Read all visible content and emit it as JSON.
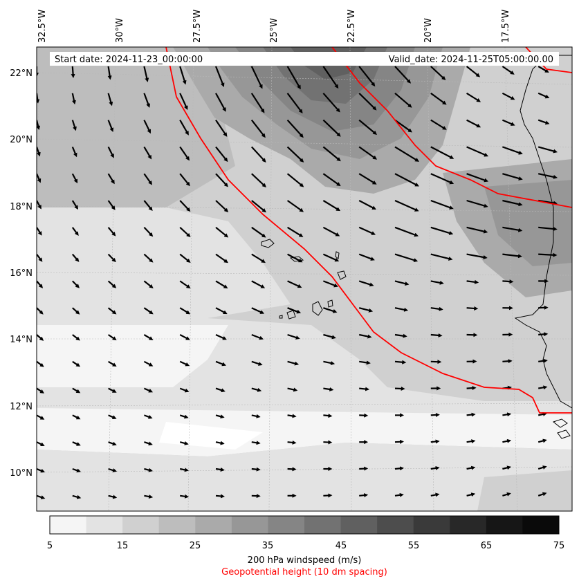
{
  "header": {
    "start_date": "Start date: 2024-11-23_00:00:00",
    "valid_date": "Valid_date: 2024-11-25T05:00:00.00"
  },
  "map": {
    "longitude_labels": [
      "32.5°W",
      "30°W",
      "27.5°W",
      "25°W",
      "22.5°W",
      "20°W",
      "17.5°W"
    ],
    "latitude_labels": [
      "22°N",
      "20°N",
      "18°N",
      "16°N",
      "14°N",
      "12°N",
      "10°N"
    ],
    "extent": {
      "lon_min": -33.0,
      "lon_max": -15.5,
      "lat_min": 8.8,
      "lat_max": 22.8
    },
    "colors": {
      "geopotential_contour": "#ff0000",
      "coastline": "#000000",
      "wind_arrow": "#000000"
    }
  },
  "colorbar": {
    "ticks": [
      "5",
      "15",
      "25",
      "35",
      "45",
      "55",
      "65",
      "75"
    ],
    "levels": [
      5,
      10,
      15,
      20,
      25,
      30,
      35,
      40,
      45,
      50,
      55,
      60,
      65,
      70,
      75
    ],
    "colors": [
      "#f5f5f5",
      "#e3e3e3",
      "#d0d0d0",
      "#bdbdbd",
      "#aaaaaa",
      "#979797",
      "#858585",
      "#727272",
      "#606060",
      "#4d4d4d",
      "#3a3a3a",
      "#282828",
      "#161616",
      "#0a0a0a"
    ],
    "title": "200 hPa windspeed (m/s)",
    "subtitle": "Geopotential height (10 dm spacing)"
  }
}
